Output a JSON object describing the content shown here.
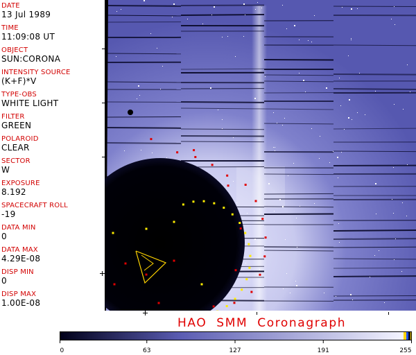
{
  "metadata": [
    {
      "label": "DATE",
      "value": "13 Jul 1989"
    },
    {
      "label": "TIME",
      "value": "11:09:08 UT"
    },
    {
      "label": "OBJECT",
      "value": "SUN:CORONA"
    },
    {
      "label": "INTENSITY SOURCE",
      "value": "(K+F)*V"
    },
    {
      "label": "TYPE-OBS",
      "value": "WHITE LIGHT"
    },
    {
      "label": "FILTER",
      "value": "GREEN"
    },
    {
      "label": "POLAROID",
      "value": "CLEAR"
    },
    {
      "label": "SECTOR",
      "value": "W"
    },
    {
      "label": "EXPOSURE",
      "value": "8.192"
    },
    {
      "label": "SPACECRAFT ROLL",
      "value": "-19"
    },
    {
      "label": "DATA MIN",
      "value": "0"
    },
    {
      "label": "DATA MAX",
      "value": "4.29E-08"
    },
    {
      "label": "DISP MIN",
      "value": "0"
    },
    {
      "label": "DISP MAX",
      "value": "1.00E-08"
    }
  ],
  "caption": "HAO  SMM  Coronagraph",
  "colorbar": {
    "ticks": [
      "0",
      "63",
      "127",
      "191",
      "255"
    ],
    "tick_values": [
      0,
      63,
      127,
      191,
      255
    ],
    "range": [
      0,
      255
    ],
    "colors": {
      "low": "#000018",
      "mid": "#5a5cb2",
      "high": "#f4f4ff",
      "accent_yellow": "#ffd400",
      "accent_blue": "#2050ff"
    }
  },
  "colors": {
    "label_red": "#d20000",
    "marker_red": "#e00000",
    "marker_yellow": "#ffee00",
    "corona_blue": "#6264bc"
  }
}
